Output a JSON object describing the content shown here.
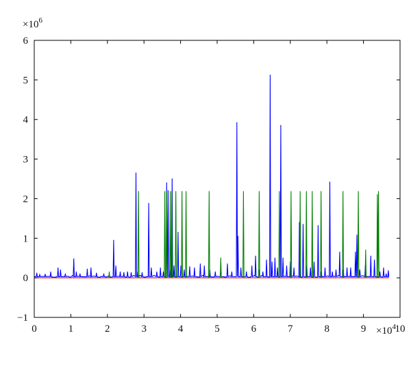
{
  "chart_data": {
    "type": "line",
    "title": "",
    "xlabel": "",
    "ylabel": "",
    "xlim": [
      0,
      100000
    ],
    "ylim": [
      -1000000,
      6000000
    ],
    "x_ticks": [
      0,
      10000,
      20000,
      30000,
      40000,
      50000,
      60000,
      70000,
      80000,
      90000,
      100000
    ],
    "x_tick_labels": [
      "0",
      "1",
      "2",
      "3",
      "4",
      "5",
      "6",
      "7",
      "8",
      "9",
      "10"
    ],
    "y_ticks": [
      -1000000,
      0,
      1000000,
      2000000,
      3000000,
      4000000,
      5000000,
      6000000
    ],
    "y_tick_labels": [
      "−1",
      "0",
      "1",
      "2",
      "3",
      "4",
      "5",
      "6"
    ],
    "x_multiplier": {
      "base": "×10",
      "exp": "4"
    },
    "y_multiplier": {
      "base": "×10",
      "exp": "6"
    },
    "grid": false,
    "legend": "none",
    "series": [
      {
        "color": "#0000ff",
        "baseline": 30000,
        "spikes": [
          [
            700,
            120000
          ],
          [
            1500,
            80000
          ],
          [
            3000,
            90000
          ],
          [
            4500,
            150000
          ],
          [
            6500,
            250000
          ],
          [
            7200,
            200000
          ],
          [
            8500,
            100000
          ],
          [
            10800,
            480000
          ],
          [
            11500,
            150000
          ],
          [
            12500,
            100000
          ],
          [
            14500,
            220000
          ],
          [
            15500,
            250000
          ],
          [
            17000,
            120000
          ],
          [
            19000,
            100000
          ],
          [
            21700,
            950000
          ],
          [
            22300,
            300000
          ],
          [
            23500,
            150000
          ],
          [
            24500,
            130000
          ],
          [
            25500,
            150000
          ],
          [
            26500,
            130000
          ],
          [
            27800,
            2650000
          ],
          [
            28300,
            150000
          ],
          [
            29500,
            130000
          ],
          [
            31300,
            1880000
          ],
          [
            32000,
            250000
          ],
          [
            33500,
            150000
          ],
          [
            34500,
            250000
          ],
          [
            35300,
            150000
          ],
          [
            36200,
            2400000
          ],
          [
            36600,
            2200000
          ],
          [
            37100,
            200000
          ],
          [
            37700,
            2500000
          ],
          [
            38200,
            300000
          ],
          [
            39300,
            1150000
          ],
          [
            40100,
            300000
          ],
          [
            41000,
            200000
          ],
          [
            42500,
            280000
          ],
          [
            43800,
            250000
          ],
          [
            45400,
            350000
          ],
          [
            46500,
            300000
          ],
          [
            48000,
            200000
          ],
          [
            49500,
            150000
          ],
          [
            51000,
            200000
          ],
          [
            52800,
            350000
          ],
          [
            54000,
            150000
          ],
          [
            55400,
            3920000
          ],
          [
            55700,
            1050000
          ],
          [
            56500,
            250000
          ],
          [
            58000,
            150000
          ],
          [
            59500,
            300000
          ],
          [
            60500,
            550000
          ],
          [
            61500,
            200000
          ],
          [
            62500,
            150000
          ],
          [
            63500,
            450000
          ],
          [
            64500,
            5120000
          ],
          [
            65000,
            400000
          ],
          [
            65800,
            500000
          ],
          [
            66500,
            250000
          ],
          [
            67400,
            3850000
          ],
          [
            68000,
            500000
          ],
          [
            69000,
            300000
          ],
          [
            70000,
            400000
          ],
          [
            71000,
            250000
          ],
          [
            72500,
            1400000
          ],
          [
            73500,
            1350000
          ],
          [
            74500,
            300000
          ],
          [
            75500,
            250000
          ],
          [
            76500,
            400000
          ],
          [
            77600,
            1320000
          ],
          [
            78500,
            150000
          ],
          [
            79500,
            250000
          ],
          [
            80800,
            2420000
          ],
          [
            81500,
            150000
          ],
          [
            82500,
            200000
          ],
          [
            83500,
            650000
          ],
          [
            84500,
            200000
          ],
          [
            85500,
            250000
          ],
          [
            86500,
            250000
          ],
          [
            87800,
            650000
          ],
          [
            88200,
            1080000
          ],
          [
            89000,
            200000
          ],
          [
            90500,
            300000
          ],
          [
            92000,
            550000
          ],
          [
            93000,
            450000
          ],
          [
            94500,
            150000
          ],
          [
            95500,
            250000
          ],
          [
            96200,
            100000
          ],
          [
            96800,
            180000
          ]
        ]
      },
      {
        "color": "#008000",
        "baseline": 0,
        "spikes": [
          [
            20500,
            150000
          ],
          [
            28500,
            2180000
          ],
          [
            35700,
            2180000
          ],
          [
            36200,
            2180000
          ],
          [
            37200,
            2180000
          ],
          [
            37600,
            2180000
          ],
          [
            38700,
            2180000
          ],
          [
            40400,
            2180000
          ],
          [
            41500,
            2180000
          ],
          [
            47800,
            2180000
          ],
          [
            51000,
            500000
          ],
          [
            57200,
            2180000
          ],
          [
            61500,
            2180000
          ],
          [
            67000,
            2180000
          ],
          [
            70200,
            2180000
          ],
          [
            72700,
            2180000
          ],
          [
            74400,
            2180000
          ],
          [
            76000,
            2180000
          ],
          [
            78400,
            2180000
          ],
          [
            84400,
            2180000
          ],
          [
            88600,
            2180000
          ],
          [
            90600,
            700000
          ],
          [
            93800,
            2100000
          ],
          [
            94100,
            2180000
          ]
        ]
      },
      {
        "color": "#ff0000",
        "baseline": 0,
        "spikes": []
      }
    ]
  }
}
